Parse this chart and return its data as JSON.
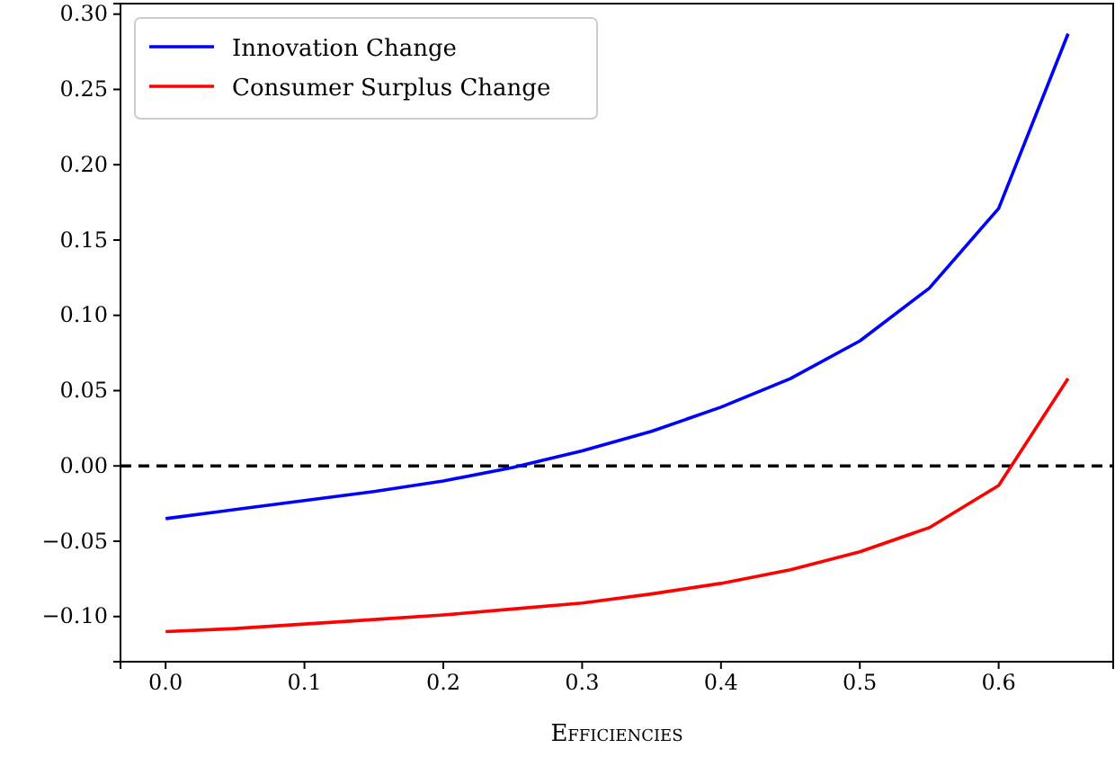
{
  "chart_data": {
    "type": "line",
    "xlabel": "Efficiencies",
    "x": [
      0,
      0.05,
      0.1,
      0.15,
      0.2,
      0.25,
      0.3,
      0.35,
      0.4,
      0.45,
      0.5,
      0.55,
      0.6,
      0.65
    ],
    "series": [
      {
        "name": "Innovation Change",
        "color": "#0000ff",
        "values": [
          -0.035,
          -0.029,
          -0.023,
          -0.017,
          -0.01,
          -0.001,
          0.01,
          0.023,
          0.039,
          0.058,
          0.083,
          0.118,
          0.171,
          0.287
        ]
      },
      {
        "name": "Consumer Surplus Change",
        "color": "#ff0000",
        "values": [
          -0.11,
          -0.108,
          -0.105,
          -0.102,
          -0.099,
          -0.095,
          -0.091,
          -0.085,
          -0.078,
          -0.069,
          -0.057,
          -0.041,
          -0.013,
          0.058
        ]
      }
    ],
    "xlim": [
      -0.0325,
      0.6825
    ],
    "ylim": [
      -0.13,
      0.307
    ],
    "xticks": [
      {
        "value": 0,
        "label": "0.0"
      },
      0.1,
      0.2,
      0.3,
      0.4,
      0.5,
      0.6
    ],
    "yticks": [
      {
        "value": -0.1,
        "label": "−0.10"
      },
      {
        "value": -0.05,
        "label": "−0.05"
      },
      {
        "value": 0,
        "label": "0.00"
      },
      {
        "value": 0.05,
        "label": "0.05"
      },
      {
        "value": 0.1,
        "label": "0.10"
      },
      {
        "value": 0.15,
        "label": "0.15"
      },
      {
        "value": 0.2,
        "label": "0.20"
      },
      {
        "value": 0.25,
        "label": "0.25"
      },
      {
        "value": 0.3,
        "label": "0.30"
      }
    ],
    "ref_lines": [
      {
        "axis": "y",
        "value": 0,
        "color": "#000000",
        "line_style": "dashed"
      }
    ],
    "legend": "top left",
    "grid": false
  }
}
